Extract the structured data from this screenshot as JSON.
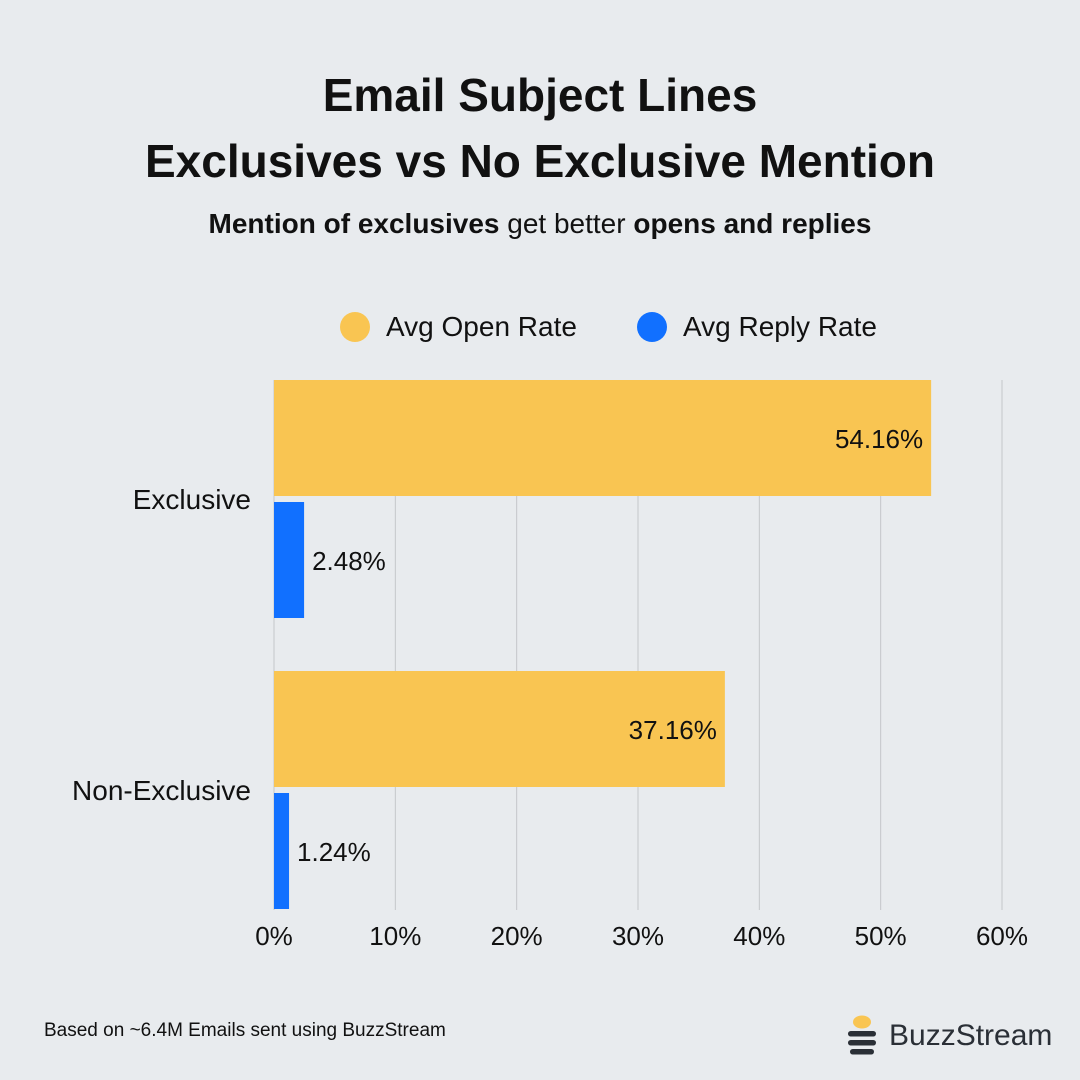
{
  "header": {
    "title_line1": "Email Subject Lines",
    "title_line2": "Exclusives vs No Exclusive Mention",
    "subtitle_part1": "Mention of exclusives",
    "subtitle_part2": " get better ",
    "subtitle_part3": "opens and replies"
  },
  "legend": {
    "open_label": "Avg Open Rate",
    "reply_label": "Avg Reply Rate"
  },
  "colors": {
    "open": "#f9c552",
    "reply": "#1170ff",
    "grid": "#c4c7ca",
    "background": "#e8ebee"
  },
  "chart_data": {
    "type": "bar",
    "orientation": "horizontal",
    "categories": [
      "Exclusive",
      "Non-Exclusive"
    ],
    "series": [
      {
        "name": "Avg Open Rate",
        "values": [
          54.16,
          37.16
        ],
        "labels": [
          "54.16%",
          "37.16%"
        ]
      },
      {
        "name": "Avg Reply Rate",
        "values": [
          2.48,
          1.24
        ],
        "labels": [
          "2.48%",
          "1.24%"
        ]
      }
    ],
    "xlim": [
      0,
      60
    ],
    "xticks": [
      "0%",
      "10%",
      "20%",
      "30%",
      "40%",
      "50%",
      "60%"
    ],
    "grid": "vertical",
    "legend_position": "top"
  },
  "footer": {
    "note": "Based on ~6.4M Emails sent using BuzzStream",
    "brand": "BuzzStream"
  }
}
